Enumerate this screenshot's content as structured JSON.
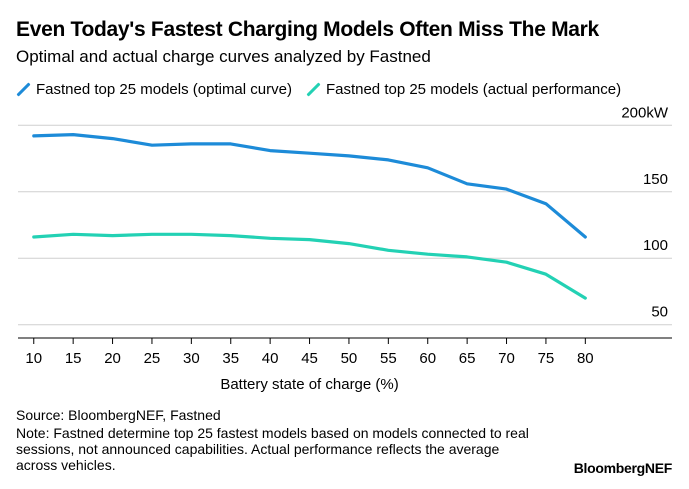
{
  "chart_data": {
    "type": "line",
    "title": "Even Today's Fastest Charging Models Often Miss The Mark",
    "subtitle": "Optimal and actual charge curves analyzed by Fastned",
    "xlabel": "Battery state of charge (%)",
    "ylabel": "",
    "y_unit_label": "200kW",
    "x": [
      10,
      15,
      20,
      25,
      30,
      35,
      40,
      45,
      50,
      55,
      60,
      65,
      70,
      75,
      80
    ],
    "x_tick_labels": [
      "10",
      "15",
      "20",
      "25",
      "30",
      "35",
      "40",
      "45",
      "50",
      "55",
      "60",
      "65",
      "70",
      "75",
      "80"
    ],
    "y_ticks": [
      50,
      100,
      150,
      200
    ],
    "y_tick_labels": [
      "50",
      "100",
      "150",
      "200kW"
    ],
    "ylim": [
      40,
      210
    ],
    "xlim": [
      8,
      91
    ],
    "grid": true,
    "legend_position": "top-left",
    "series": [
      {
        "name": "Fastned top 25 models (optimal curve)",
        "color": "#1d8bd8",
        "values": [
          192,
          193,
          190,
          185,
          186,
          186,
          181,
          179,
          177,
          174,
          168,
          156,
          152,
          141,
          116
        ]
      },
      {
        "name": "Fastned top 25 models (actual performance)",
        "color": "#23d1b4",
        "values": [
          116,
          118,
          117,
          118,
          118,
          117,
          115,
          114,
          111,
          106,
          103,
          101,
          97,
          88,
          70
        ]
      }
    ]
  },
  "footer": {
    "source": "Source: BloombergNEF, Fastned",
    "note": "Note: Fastned determine top 25 fastest models based on models connected to real sessions, not announced capabilities. Actual performance reflects the average across vehicles.",
    "brand": "BloombergNEF"
  }
}
